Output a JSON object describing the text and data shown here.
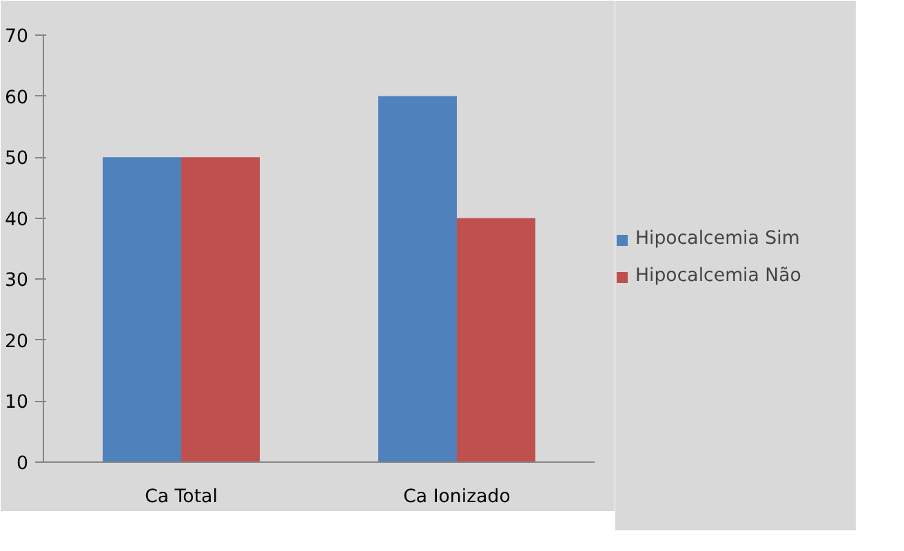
{
  "chart_data": {
    "type": "bar",
    "categories": [
      "Ca Total",
      "Ca Ionizado"
    ],
    "series": [
      {
        "name": "Hipocalcemia Sim",
        "color": "#4f81bd",
        "values": [
          50,
          60
        ]
      },
      {
        "name": "Hipocalcemia Não",
        "color": "#c0504d",
        "values": [
          50,
          40
        ]
      }
    ],
    "ylim": [
      0,
      70
    ],
    "yticks": [
      0,
      10,
      20,
      30,
      40,
      50,
      60,
      70
    ],
    "grid": false,
    "legend": "right"
  }
}
